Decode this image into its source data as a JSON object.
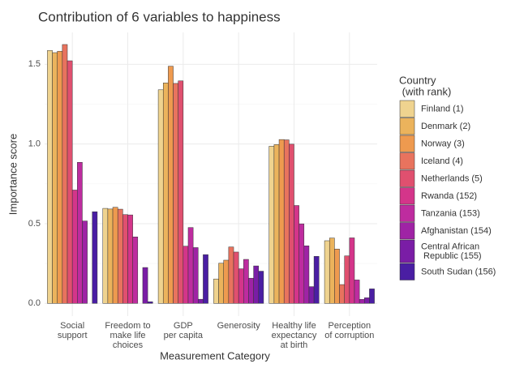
{
  "chart_data": {
    "type": "bar",
    "title": "Contribution of 6 variables to happiness",
    "x_label": "Measurement Category",
    "y_label": "Importance score",
    "legend_title": [
      "Country",
      " (with rank)"
    ],
    "legend_position": "right",
    "grid": true,
    "categories": [
      [
        "Social",
        "support"
      ],
      [
        "Freedom to",
        "make life",
        "choices"
      ],
      [
        "GDP",
        "per capita"
      ],
      [
        "Generosity"
      ],
      [
        "Healthy life",
        "expectancy",
        "at birth"
      ],
      [
        "Perception",
        "of corruption"
      ]
    ],
    "ylim": [
      -0.08,
      1.7
    ],
    "yticks": [
      {
        "value": 0,
        "label": "0.0"
      },
      0.5,
      {
        "value": 1,
        "label": "1.0"
      },
      1.5
    ],
    "series": [
      {
        "name": [
          "Finland (1)"
        ],
        "color": "#efd38f",
        "values": [
          1.587,
          0.596,
          1.34,
          0.153,
          0.986,
          0.393
        ]
      },
      {
        "name": [
          "Denmark (2)"
        ],
        "color": "#ebb35c",
        "values": [
          1.573,
          0.592,
          1.383,
          0.252,
          0.996,
          0.41
        ]
      },
      {
        "name": [
          "Norway (3)"
        ],
        "color": "#ee9a4f",
        "values": [
          1.582,
          0.603,
          1.488,
          0.271,
          1.028,
          0.341
        ]
      },
      {
        "name": [
          "Iceland (4)"
        ],
        "color": "#e8735e",
        "values": [
          1.624,
          0.591,
          1.38,
          0.354,
          1.026,
          0.118
        ]
      },
      {
        "name": [
          "Netherlands (5)"
        ],
        "color": "#e0506f",
        "values": [
          1.522,
          0.557,
          1.396,
          0.322,
          0.999,
          0.298
        ]
      },
      {
        "name": [
          "Rwanda (152)"
        ],
        "color": "#d4358a",
        "values": [
          0.711,
          0.555,
          0.359,
          0.217,
          0.614,
          0.411
        ]
      },
      {
        "name": [
          "Tanzania (153)"
        ],
        "color": "#be2c9f",
        "values": [
          0.885,
          0.417,
          0.476,
          0.276,
          0.499,
          0.147
        ]
      },
      {
        "name": [
          "Afghanistan (154)"
        ],
        "color": "#9f23a5",
        "values": [
          0.517,
          0,
          0.35,
          0.158,
          0.361,
          0.025
        ]
      },
      {
        "name": [
          "Central African",
          " Republic (155)"
        ],
        "color": "#7a1da6",
        "values": [
          0,
          0.225,
          0.026,
          0.235,
          0.105,
          0.035
        ]
      },
      {
        "name": [
          "South Sudan (156)"
        ],
        "color": "#4a1ea3",
        "values": [
          0.575,
          0.01,
          0.306,
          0.202,
          0.295,
          0.091
        ]
      }
    ]
  }
}
